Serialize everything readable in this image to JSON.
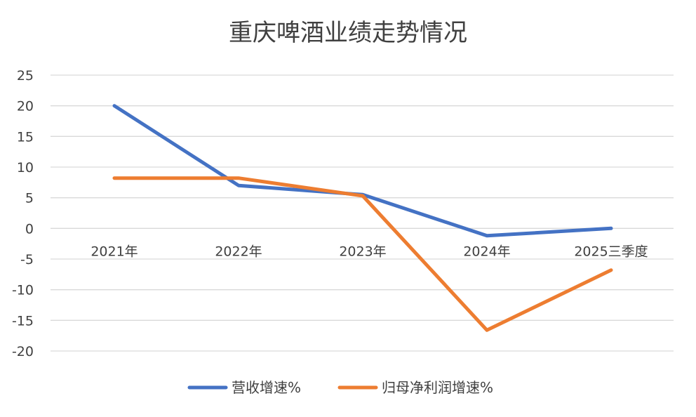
{
  "chart_data": {
    "type": "line",
    "title": "重庆啤酒业绩走势情况",
    "categories": [
      "2021年",
      "2022年",
      "2023年",
      "2024年",
      "2025三季度"
    ],
    "series": [
      {
        "name": "营收增速%",
        "color": "#4472c4",
        "values": [
          20,
          7.0,
          5.5,
          -1.2,
          0
        ]
      },
      {
        "name": "归母净利润增速%",
        "color": "#ed7d31",
        "values": [
          8.2,
          8.2,
          5.3,
          -16.6,
          -6.8
        ]
      }
    ],
    "ylim": [
      -20,
      25
    ],
    "yticks": [
      "25",
      "20",
      "15",
      "10",
      "5",
      "0",
      "-5",
      "-10",
      "-15",
      "-20"
    ],
    "ytick_values": [
      25,
      20,
      15,
      10,
      5,
      0,
      -5,
      -10,
      -15,
      -20
    ],
    "grid": true,
    "legend_position": "bottom"
  }
}
